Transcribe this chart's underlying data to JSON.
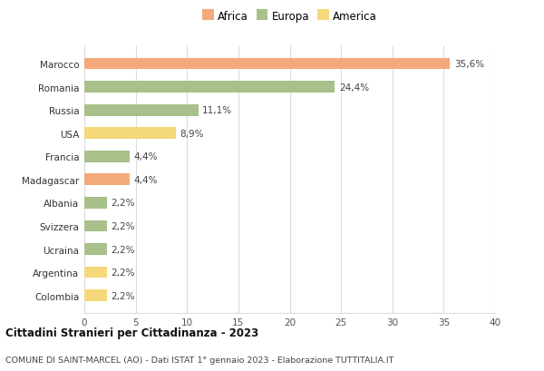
{
  "countries": [
    "Marocco",
    "Romania",
    "Russia",
    "USA",
    "Francia",
    "Madagascar",
    "Albania",
    "Svizzera",
    "Ucraina",
    "Argentina",
    "Colombia"
  ],
  "values": [
    35.6,
    24.4,
    11.1,
    8.9,
    4.4,
    4.4,
    2.2,
    2.2,
    2.2,
    2.2,
    2.2
  ],
  "labels": [
    "35,6%",
    "24,4%",
    "11,1%",
    "8,9%",
    "4,4%",
    "4,4%",
    "2,2%",
    "2,2%",
    "2,2%",
    "2,2%",
    "2,2%"
  ],
  "colors": [
    "#F4A97A",
    "#A8C08A",
    "#A8C08A",
    "#F5D87A",
    "#A8C08A",
    "#F4A97A",
    "#A8C08A",
    "#A8C08A",
    "#A8C08A",
    "#F5D87A",
    "#F5D87A"
  ],
  "legend": [
    {
      "label": "Africa",
      "color": "#F4A97A"
    },
    {
      "label": "Europa",
      "color": "#A8C08A"
    },
    {
      "label": "America",
      "color": "#F5D87A"
    }
  ],
  "xlim": [
    0,
    40
  ],
  "xticks": [
    0,
    5,
    10,
    15,
    20,
    25,
    30,
    35,
    40
  ],
  "title": "Cittadini Stranieri per Cittadinanza - 2023",
  "subtitle": "COMUNE DI SAINT-MARCEL (AO) - Dati ISTAT 1° gennaio 2023 - Elaborazione TUTTITALIA.IT",
  "bg_color": "#FFFFFF",
  "grid_color": "#DCDCDC",
  "bar_height": 0.5
}
